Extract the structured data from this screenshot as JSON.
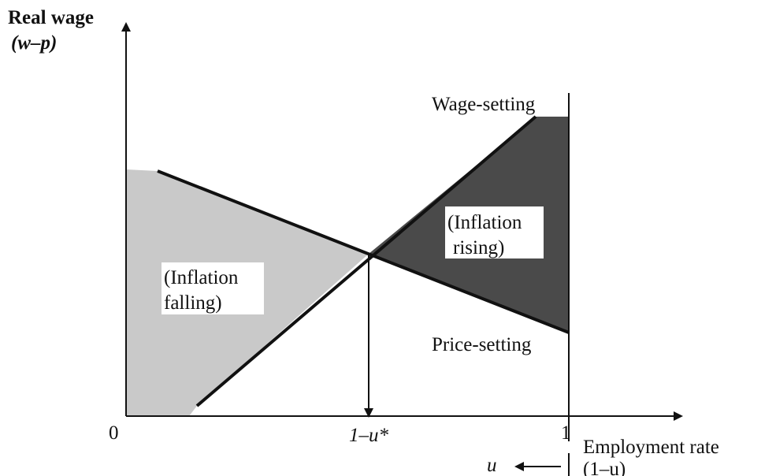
{
  "y_axis": {
    "label": "Real wage",
    "symbol": "(w–p)"
  },
  "x_axis": {
    "label": "Employment rate",
    "symbol": "(1–u)",
    "origin": "0",
    "equilibrium": "1–u*",
    "full": "1",
    "u_direction": "u"
  },
  "curves": {
    "wage_setting": "Wage-setting",
    "price_setting": "Price-setting"
  },
  "regions": {
    "rising": [
      "(Inflation",
      "rising)"
    ],
    "falling": [
      "(Inflation",
      "falling)"
    ]
  }
}
